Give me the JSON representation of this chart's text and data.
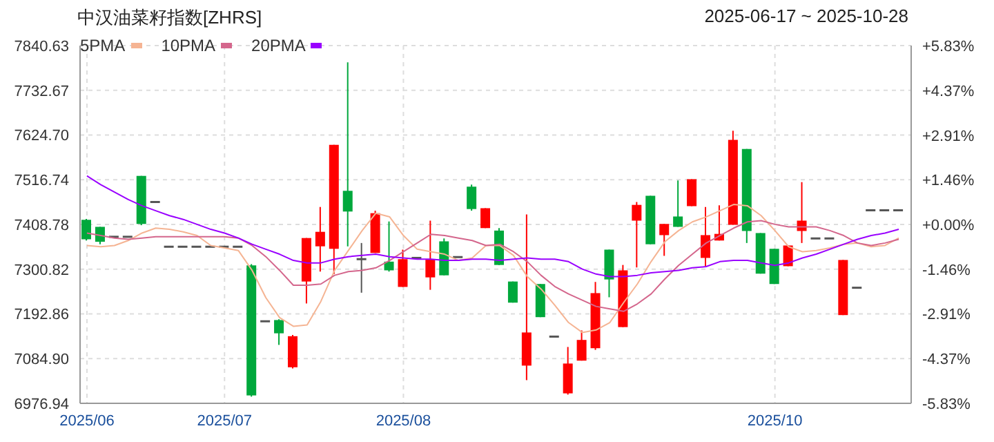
{
  "chart_data": {
    "type": "candlestick",
    "title": "中汉油菜籽指数[ZHRS]",
    "subtitle": "2025-06-17 ~ 2025-10-28",
    "categories": [
      "2025/06",
      null,
      null,
      null,
      null,
      null,
      null,
      null,
      null,
      null,
      "2025/07",
      null,
      null,
      null,
      null,
      null,
      null,
      null,
      null,
      null,
      null,
      null,
      null,
      "2025/08",
      null,
      null,
      null,
      null,
      null,
      null,
      null,
      null,
      null,
      null,
      null,
      null,
      null,
      null,
      null,
      null,
      null,
      null,
      null,
      null,
      null,
      null,
      null,
      null,
      null,
      null,
      "2025/10",
      null,
      null,
      null,
      null,
      null,
      null,
      null,
      null,
      null
    ],
    "ohlc": [
      [
        7420,
        7422,
        7370,
        7373
      ],
      [
        7403,
        7403,
        7361,
        7367
      ],
      [
        7379,
        7379,
        7379,
        7379
      ],
      [
        7379,
        7379,
        7379,
        7379
      ],
      [
        7526,
        7526,
        7407,
        7410
      ],
      [
        7463,
        7463,
        7463,
        7463
      ],
      [
        7355,
        7355,
        7355,
        7355
      ],
      [
        7355,
        7355,
        7355,
        7355
      ],
      [
        7355,
        7355,
        7355,
        7355
      ],
      [
        7355,
        7355,
        7355,
        7355
      ],
      [
        7355,
        7355,
        7355,
        7355
      ],
      [
        7355,
        7355,
        7355,
        7355
      ],
      [
        7310,
        7313,
        6993,
        6996
      ],
      [
        7175,
        7175,
        7175,
        7175
      ],
      [
        7178,
        7180,
        7118,
        7146
      ],
      [
        7064,
        7142,
        7061,
        7139
      ],
      [
        7271,
        7376,
        7218,
        7376
      ],
      [
        7356,
        7451,
        7295,
        7391
      ],
      [
        7350,
        7601,
        7289,
        7601
      ],
      [
        7490,
        7800,
        7356,
        7440
      ],
      [
        7325,
        7364,
        7244,
        7325
      ],
      [
        7340,
        7442,
        7340,
        7436
      ],
      [
        7319,
        7416,
        7295,
        7298
      ],
      [
        7258,
        7348,
        7258,
        7325
      ],
      [
        7328,
        7328,
        7328,
        7328
      ],
      [
        7281,
        7418,
        7251,
        7325
      ],
      [
        7368,
        7375,
        7286,
        7286
      ],
      [
        7330,
        7330,
        7330,
        7330
      ],
      [
        7500,
        7505,
        7442,
        7446
      ],
      [
        7400,
        7448,
        7400,
        7448
      ],
      [
        7394,
        7400,
        7311,
        7311
      ],
      [
        7271,
        7271,
        7220,
        7220
      ],
      [
        7068,
        7433,
        7033,
        7148
      ],
      [
        7265,
        7265,
        7185,
        7185
      ],
      [
        7138,
        7138,
        7138,
        7138
      ],
      [
        7001,
        7113,
        6998,
        7073
      ],
      [
        7080,
        7153,
        7080,
        7130
      ],
      [
        7110,
        7270,
        7106,
        7243
      ],
      [
        7348,
        7348,
        7233,
        7276
      ],
      [
        7161,
        7311,
        7161,
        7298
      ],
      [
        7418,
        7463,
        7305,
        7456
      ],
      [
        7478,
        7478,
        7361,
        7361
      ],
      [
        7383,
        7410,
        7333,
        7410
      ],
      [
        7428,
        7515,
        7403,
        7403
      ],
      [
        7453,
        7518,
        7453,
        7518
      ],
      [
        7328,
        7451,
        7308,
        7383
      ],
      [
        7370,
        7455,
        7370,
        7386
      ],
      [
        7408,
        7635,
        7408,
        7613
      ],
      [
        7591,
        7591,
        7364,
        7393
      ],
      [
        7388,
        7388,
        7290,
        7290
      ],
      [
        7350,
        7350,
        7265,
        7265
      ],
      [
        7308,
        7358,
        7308,
        7358
      ],
      [
        7393,
        7511,
        7364,
        7418
      ],
      [
        7375,
        7375,
        7375,
        7375
      ],
      [
        7375,
        7375,
        7375,
        7375
      ],
      [
        7190,
        7323,
        7190,
        7323
      ],
      [
        7256,
        7256,
        7256,
        7256
      ],
      [
        7443,
        7443,
        7443,
        7443
      ],
      [
        7443,
        7443,
        7443,
        7443
      ],
      [
        7443,
        7443,
        7443,
        7443
      ]
    ],
    "colors": [
      "#00a83c",
      "#00a83c",
      "#555555",
      "#555555",
      "#00a83c",
      "#555555",
      "#555555",
      "#555555",
      "#555555",
      "#555555",
      "#555555",
      "#555555",
      "#00a83c",
      "#555555",
      "#00a83c",
      "#ff0000",
      "#ff0000",
      "#ff0000",
      "#ff0000",
      "#00a83c",
      "#555555",
      "#ff0000",
      "#00a83c",
      "#ff0000",
      "#555555",
      "#ff0000",
      "#00a83c",
      "#555555",
      "#00a83c",
      "#ff0000",
      "#00a83c",
      "#00a83c",
      "#ff0000",
      "#00a83c",
      "#555555",
      "#ff0000",
      "#ff0000",
      "#ff0000",
      "#00a83c",
      "#ff0000",
      "#ff0000",
      "#00a83c",
      "#ff0000",
      "#00a83c",
      "#ff0000",
      "#ff0000",
      "#ff0000",
      "#ff0000",
      "#00a83c",
      "#00a83c",
      "#00a83c",
      "#ff0000",
      "#ff0000",
      "#555555",
      "#555555",
      "#ff0000",
      "#555555",
      "#555555",
      "#555555",
      "#555555"
    ],
    "series": [
      {
        "name": "5PMA",
        "type": "line",
        "color": "#f5b493",
        "values": [
          7358,
          7355,
          7358,
          7370,
          7388,
          7400,
          7397,
          7391,
          7382,
          7358,
          7352,
          7346,
          7298,
          7232,
          7184,
          7163,
          7166,
          7223,
          7298,
          7346,
          7394,
          7436,
          7427,
          7382,
          7349,
          7343,
          7337,
          7322,
          7328,
          7358,
          7358,
          7334,
          7283,
          7253,
          7214,
          7172,
          7148,
          7154,
          7172,
          7220,
          7265,
          7319,
          7367,
          7394,
          7415,
          7427,
          7442,
          7457,
          7454,
          7430,
          7394,
          7355,
          7343,
          7346,
          7352,
          7361,
          7364,
          7355,
          7358,
          7376
        ]
      },
      {
        "name": "10PMA",
        "type": "line",
        "color": "#d4668c",
        "values": [
          7388,
          7382,
          7376,
          7373,
          7376,
          7379,
          7379,
          7379,
          7379,
          7379,
          7379,
          7376,
          7358,
          7331,
          7298,
          7262,
          7262,
          7265,
          7286,
          7295,
          7298,
          7304,
          7322,
          7343,
          7364,
          7385,
          7382,
          7376,
          7370,
          7358,
          7361,
          7343,
          7319,
          7286,
          7259,
          7241,
          7226,
          7211,
          7205,
          7199,
          7217,
          7241,
          7277,
          7310,
          7337,
          7364,
          7382,
          7400,
          7415,
          7418,
          7409,
          7403,
          7403,
          7403,
          7394,
          7382,
          7364,
          7358,
          7364,
          7373
        ]
      },
      {
        "name": "20PMA",
        "type": "line",
        "color": "#9900ff",
        "values": [
          7526,
          7505,
          7487,
          7469,
          7454,
          7442,
          7430,
          7421,
          7409,
          7397,
          7388,
          7376,
          7361,
          7349,
          7337,
          7322,
          7316,
          7316,
          7325,
          7331,
          7334,
          7337,
          7331,
          7328,
          7325,
          7325,
          7322,
          7322,
          7325,
          7325,
          7322,
          7325,
          7328,
          7325,
          7325,
          7319,
          7301,
          7289,
          7283,
          7283,
          7286,
          7292,
          7295,
          7298,
          7304,
          7307,
          7319,
          7322,
          7322,
          7316,
          7310,
          7316,
          7328,
          7337,
          7349,
          7361,
          7373,
          7382,
          7388,
          7397
        ]
      }
    ],
    "ylim": [
      6976.94,
      7840.63
    ],
    "yticks": [
      6976.94,
      {
        "value": 7084.9,
        "label": "7084.90"
      },
      7192.86,
      7300.82,
      7408.78,
      7516.74,
      {
        "value": 7624.7,
        "label": "7624.70"
      },
      7732.67,
      7840.63
    ],
    "y2lim": [
      -5.83,
      5.83
    ],
    "y2ticks": [
      {
        "value": -5.83,
        "label": "-5.83%"
      },
      {
        "value": -4.37,
        "label": "-4.37%"
      },
      {
        "value": -2.91,
        "label": "-2.91%"
      },
      {
        "value": -1.46,
        "label": "-1.46%"
      },
      {
        "value": 0,
        "label": "+0.00%"
      },
      {
        "value": 1.46,
        "label": "+1.46%"
      },
      {
        "value": 2.91,
        "label": "+2.91%"
      },
      {
        "value": 4.37,
        "label": "+4.37%"
      },
      {
        "value": 5.83,
        "label": "+5.83%"
      }
    ],
    "grid": true,
    "legend": "top left"
  }
}
